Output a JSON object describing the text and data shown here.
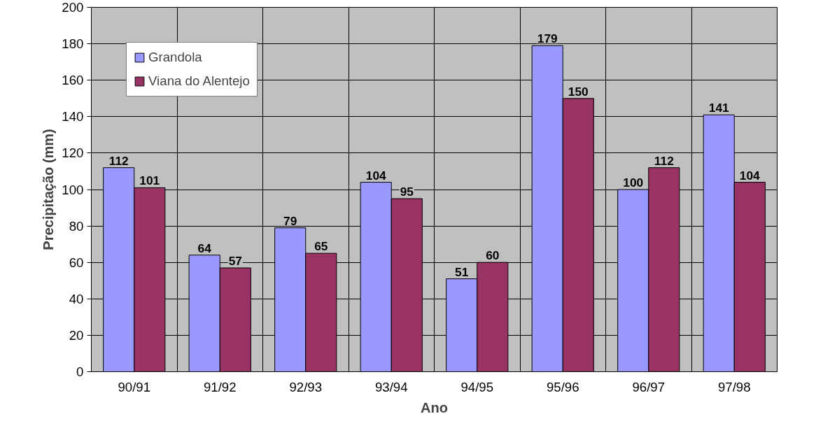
{
  "chart_data": {
    "type": "bar",
    "xlabel": "Ano",
    "ylabel": "Precipitação (mm)",
    "categories": [
      "90/91",
      "91/92",
      "92/93",
      "93/94",
      "94/95",
      "95/96",
      "96/97",
      "97/98"
    ],
    "series": [
      {
        "name": "Grandola",
        "color": "#9999ff",
        "values": [
          112,
          64,
          79,
          104,
          51,
          179,
          100,
          141
        ]
      },
      {
        "name": "Viana do Alentejo",
        "color": "#993366",
        "values": [
          101,
          57,
          65,
          95,
          60,
          150,
          112,
          104
        ]
      }
    ],
    "ylim": [
      0,
      200
    ],
    "yticks": [
      0,
      20,
      40,
      60,
      80,
      100,
      120,
      140,
      160,
      180,
      200
    ],
    "grid": true,
    "legend": "top left",
    "data_labels": true
  }
}
